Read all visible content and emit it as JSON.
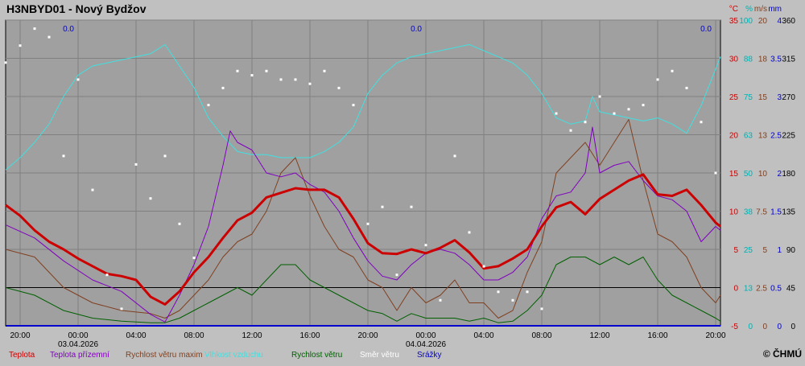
{
  "chart_data": {
    "type": "line",
    "title": "H3NBYD01 - Nový Bydžov",
    "copyright": "© ČHMÚ",
    "x_range": [
      "2026-04-02 19:00",
      "2026-04-04 20:20"
    ],
    "x_ticks": [
      {
        "t": "2026-04-02 20:00",
        "label": "20:00",
        "date": ""
      },
      {
        "t": "2026-04-03 00:00",
        "label": "00:00",
        "date": "03.04.2026"
      },
      {
        "t": "2026-04-03 04:00",
        "label": "04:00",
        "date": ""
      },
      {
        "t": "2026-04-03 08:00",
        "label": "08:00",
        "date": ""
      },
      {
        "t": "2026-04-03 12:00",
        "label": "12:00",
        "date": ""
      },
      {
        "t": "2026-04-03 16:00",
        "label": "16:00",
        "date": ""
      },
      {
        "t": "2026-04-03 20:00",
        "label": "20:00",
        "date": ""
      },
      {
        "t": "2026-04-04 00:00",
        "label": "00:00",
        "date": "04.04.2026"
      },
      {
        "t": "2026-04-04 04:00",
        "label": "04:00",
        "date": ""
      },
      {
        "t": "2026-04-04 08:00",
        "label": "08:00",
        "date": ""
      },
      {
        "t": "2026-04-04 12:00",
        "label": "12:00",
        "date": ""
      },
      {
        "t": "2026-04-04 16:00",
        "label": "16:00",
        "date": ""
      },
      {
        "t": "2026-04-04 20:00",
        "label": "20:00",
        "date": ""
      }
    ],
    "precip_labels": [
      {
        "t": "2026-04-03 00:00",
        "text": "0.0"
      },
      {
        "t": "2026-04-04 00:00",
        "text": "0.0"
      },
      {
        "t": "2026-04-04 20:00",
        "text": "0.0"
      }
    ],
    "axes": [
      {
        "unit": "°C",
        "color": "#cc0000",
        "ticks": [
          "-5",
          "0",
          "5",
          "10",
          "15",
          "20",
          "25",
          "30",
          "35"
        ]
      },
      {
        "unit": "%",
        "color": "#00b0b0",
        "ticks": [
          "0",
          "13",
          "25",
          "38",
          "50",
          "63",
          "75",
          "88",
          "100"
        ]
      },
      {
        "unit": "m/s",
        "color": "#804020",
        "ticks": [
          "0",
          "2.5",
          "5",
          "7.5",
          "10",
          "13",
          "15",
          "18",
          "20"
        ]
      },
      {
        "unit": "mm",
        "color": "#0000cc",
        "ticks": [
          "0",
          "0.5",
          "1",
          "1.5",
          "2",
          "2.5",
          "3",
          "3.5",
          "4"
        ]
      },
      {
        "unit": "",
        "color": "#000000",
        "ticks": [
          "0",
          "45",
          "90",
          "135",
          "180",
          "225",
          "270",
          "315",
          "360"
        ]
      }
    ],
    "ylim": [
      -5,
      35
    ],
    "series": [
      {
        "name": "Teplota",
        "axis": "°C",
        "color": "#cc0000",
        "width": 3,
        "x": [
          "2026-04-02 19:00",
          "2026-04-02 20:00",
          "2026-04-02 21:00",
          "2026-04-02 22:00",
          "2026-04-02 23:00",
          "2026-04-03 00:00",
          "2026-04-03 01:00",
          "2026-04-03 02:00",
          "2026-04-03 03:00",
          "2026-04-03 04:00",
          "2026-04-03 05:00",
          "2026-04-03 06:00",
          "2026-04-03 07:00",
          "2026-04-03 08:00",
          "2026-04-03 09:00",
          "2026-04-03 10:00",
          "2026-04-03 11:00",
          "2026-04-03 12:00",
          "2026-04-03 13:00",
          "2026-04-03 14:00",
          "2026-04-03 15:00",
          "2026-04-03 16:00",
          "2026-04-03 17:00",
          "2026-04-03 18:00",
          "2026-04-03 19:00",
          "2026-04-03 20:00",
          "2026-04-03 21:00",
          "2026-04-03 22:00",
          "2026-04-03 23:00",
          "2026-04-04 00:00",
          "2026-04-04 01:00",
          "2026-04-04 02:00",
          "2026-04-04 03:00",
          "2026-04-04 04:00",
          "2026-04-04 05:00",
          "2026-04-04 06:00",
          "2026-04-04 07:00",
          "2026-04-04 08:00",
          "2026-04-04 09:00",
          "2026-04-04 10:00",
          "2026-04-04 11:00",
          "2026-04-04 12:00",
          "2026-04-04 13:00",
          "2026-04-04 14:00",
          "2026-04-04 15:00",
          "2026-04-04 16:00",
          "2026-04-04 17:00",
          "2026-04-04 18:00",
          "2026-04-04 19:00",
          "2026-04-04 20:00",
          "2026-04-04 20:20"
        ],
        "values": [
          10.8,
          9.4,
          7.5,
          6.0,
          5.0,
          3.8,
          2.8,
          1.8,
          1.5,
          1.0,
          -1.2,
          -2.2,
          -0.5,
          2.0,
          4.0,
          6.5,
          8.8,
          9.8,
          11.8,
          12.4,
          13.0,
          12.8,
          12.8,
          11.8,
          9.0,
          5.8,
          4.5,
          4.4,
          5.0,
          4.5,
          5.2,
          6.2,
          4.6,
          2.5,
          2.8,
          3.8,
          5.0,
          8.0,
          10.5,
          11.2,
          9.6,
          11.6,
          12.8,
          14.0,
          14.8,
          12.2,
          12.0,
          12.8,
          10.8,
          8.5,
          8.0
        ]
      },
      {
        "name": "Teplota přízemní",
        "axis": "°C",
        "color": "#8000c0",
        "width": 1,
        "x": [
          "2026-04-02 19:00",
          "2026-04-02 21:00",
          "2026-04-02 23:00",
          "2026-04-03 01:00",
          "2026-04-03 03:00",
          "2026-04-03 05:00",
          "2026-04-03 06:00",
          "2026-04-03 07:00",
          "2026-04-03 08:00",
          "2026-04-03 09:00",
          "2026-04-03 10:00",
          "2026-04-03 10:30",
          "2026-04-03 11:00",
          "2026-04-03 12:00",
          "2026-04-03 13:00",
          "2026-04-03 14:00",
          "2026-04-03 15:00",
          "2026-04-03 16:00",
          "2026-04-03 17:00",
          "2026-04-03 18:00",
          "2026-04-03 19:00",
          "2026-04-03 20:00",
          "2026-04-03 21:00",
          "2026-04-03 22:00",
          "2026-04-03 23:00",
          "2026-04-04 00:00",
          "2026-04-04 01:00",
          "2026-04-04 02:00",
          "2026-04-04 03:00",
          "2026-04-04 04:00",
          "2026-04-04 05:00",
          "2026-04-04 06:00",
          "2026-04-04 07:00",
          "2026-04-04 08:00",
          "2026-04-04 09:00",
          "2026-04-04 10:00",
          "2026-04-04 11:00",
          "2026-04-04 11:30",
          "2026-04-04 12:00",
          "2026-04-04 13:00",
          "2026-04-04 14:00",
          "2026-04-04 15:00",
          "2026-04-04 16:00",
          "2026-04-04 17:00",
          "2026-04-04 18:00",
          "2026-04-04 19:00",
          "2026-04-04 20:00",
          "2026-04-04 20:20"
        ],
        "values": [
          8.2,
          6.5,
          3.5,
          1.0,
          -0.5,
          -3.5,
          -4.5,
          -1.0,
          3.0,
          8.0,
          16.0,
          20.5,
          19.0,
          18.0,
          15.0,
          14.5,
          15.0,
          13.5,
          12.5,
          10.0,
          6.5,
          3.5,
          1.5,
          1.0,
          3.0,
          4.5,
          5.0,
          4.5,
          3.0,
          1.0,
          1.0,
          2.0,
          4.0,
          9.0,
          12.0,
          12.5,
          15.0,
          21.0,
          15.0,
          16.0,
          16.5,
          14.0,
          12.0,
          11.5,
          10.0,
          6.0,
          8.0,
          7.5
        ]
      },
      {
        "name": "Rychlost větru maxim",
        "axis": "m/s",
        "color": "#804020",
        "width": 1,
        "x": [
          "2026-04-02 19:00",
          "2026-04-02 21:00",
          "2026-04-02 23:00",
          "2026-04-03 01:00",
          "2026-04-03 03:00",
          "2026-04-03 05:00",
          "2026-04-03 06:00",
          "2026-04-03 07:00",
          "2026-04-03 08:00",
          "2026-04-03 09:00",
          "2026-04-03 10:00",
          "2026-04-03 11:00",
          "2026-04-03 12:00",
          "2026-04-03 13:00",
          "2026-04-03 14:00",
          "2026-04-03 15:00",
          "2026-04-03 16:00",
          "2026-04-03 17:00",
          "2026-04-03 18:00",
          "2026-04-03 19:00",
          "2026-04-03 20:00",
          "2026-04-03 21:00",
          "2026-04-03 22:00",
          "2026-04-03 23:00",
          "2026-04-04 00:00",
          "2026-04-04 01:00",
          "2026-04-04 02:00",
          "2026-04-04 03:00",
          "2026-04-04 04:00",
          "2026-04-04 05:00",
          "2026-04-04 06:00",
          "2026-04-04 07:00",
          "2026-04-04 08:00",
          "2026-04-04 09:00",
          "2026-04-04 10:00",
          "2026-04-04 11:00",
          "2026-04-04 12:00",
          "2026-04-04 13:00",
          "2026-04-04 14:00",
          "2026-04-04 15:00",
          "2026-04-04 16:00",
          "2026-04-04 17:00",
          "2026-04-04 18:00",
          "2026-04-04 19:00",
          "2026-04-04 20:00",
          "2026-04-04 20:20"
        ],
        "values": [
          5.0,
          4.5,
          2.5,
          1.5,
          1.0,
          0.8,
          0.5,
          1.0,
          2.0,
          3.0,
          4.5,
          5.5,
          6.0,
          7.5,
          10.0,
          11.0,
          8.5,
          6.5,
          5.0,
          4.5,
          3.0,
          2.5,
          1.0,
          2.5,
          1.5,
          2.0,
          3.0,
          1.5,
          1.5,
          0.5,
          1.0,
          3.5,
          5.5,
          10.0,
          11.0,
          12.0,
          10.5,
          12.0,
          13.5,
          9.5,
          6.0,
          5.5,
          4.5,
          2.5,
          1.5,
          2.0
        ]
      },
      {
        "name": "Vlhkost vzduchu",
        "axis": "%",
        "color": "#40e0e0",
        "width": 1,
        "x": [
          "2026-04-02 19:00",
          "2026-04-02 20:00",
          "2026-04-02 21:00",
          "2026-04-02 22:00",
          "2026-04-02 23:00",
          "2026-04-03 00:00",
          "2026-04-03 01:00",
          "2026-04-03 02:00",
          "2026-04-03 03:00",
          "2026-04-03 04:00",
          "2026-04-03 05:00",
          "2026-04-03 06:00",
          "2026-04-03 07:00",
          "2026-04-03 08:00",
          "2026-04-03 09:00",
          "2026-04-03 10:00",
          "2026-04-03 11:00",
          "2026-04-03 12:00",
          "2026-04-03 13:00",
          "2026-04-03 14:00",
          "2026-04-03 15:00",
          "2026-04-03 16:00",
          "2026-04-03 17:00",
          "2026-04-03 18:00",
          "2026-04-03 19:00",
          "2026-04-03 20:00",
          "2026-04-03 21:00",
          "2026-04-03 22:00",
          "2026-04-03 23:00",
          "2026-04-04 00:00",
          "2026-04-04 01:00",
          "2026-04-04 02:00",
          "2026-04-04 03:00",
          "2026-04-04 04:00",
          "2026-04-04 05:00",
          "2026-04-04 06:00",
          "2026-04-04 07:00",
          "2026-04-04 08:00",
          "2026-04-04 09:00",
          "2026-04-04 10:00",
          "2026-04-04 11:00",
          "2026-04-04 11:30",
          "2026-04-04 12:00",
          "2026-04-04 13:00",
          "2026-04-04 14:00",
          "2026-04-04 15:00",
          "2026-04-04 16:00",
          "2026-04-04 17:00",
          "2026-04-04 18:00",
          "2026-04-04 19:00",
          "2026-04-04 20:00",
          "2026-04-04 20:20"
        ],
        "values": [
          51,
          55,
          60,
          66,
          75,
          82,
          85,
          86,
          87,
          88,
          89,
          92,
          85,
          78,
          68,
          62,
          57,
          56,
          56,
          55,
          55,
          55,
          57,
          60,
          65,
          76,
          82,
          86,
          88,
          89,
          90,
          91,
          92,
          90,
          88,
          86,
          82,
          76,
          68,
          66,
          67,
          75,
          70,
          69,
          68,
          67,
          68,
          66,
          63,
          72,
          84,
          88
        ]
      },
      {
        "name": "Rychlost větru",
        "axis": "m/s",
        "color": "#006000",
        "width": 1,
        "x": [
          "2026-04-02 19:00",
          "2026-04-02 21:00",
          "2026-04-02 23:00",
          "2026-04-03 01:00",
          "2026-04-03 03:00",
          "2026-04-03 05:00",
          "2026-04-03 06:00",
          "2026-04-03 07:00",
          "2026-04-03 08:00",
          "2026-04-03 09:00",
          "2026-04-03 10:00",
          "2026-04-03 11:00",
          "2026-04-03 12:00",
          "2026-04-03 13:00",
          "2026-04-03 14:00",
          "2026-04-03 15:00",
          "2026-04-03 16:00",
          "2026-04-03 17:00",
          "2026-04-03 18:00",
          "2026-04-03 19:00",
          "2026-04-03 20:00",
          "2026-04-03 21:00",
          "2026-04-03 22:00",
          "2026-04-03 23:00",
          "2026-04-04 00:00",
          "2026-04-04 01:00",
          "2026-04-04 02:00",
          "2026-04-04 03:00",
          "2026-04-04 04:00",
          "2026-04-04 05:00",
          "2026-04-04 06:00",
          "2026-04-04 07:00",
          "2026-04-04 08:00",
          "2026-04-04 09:00",
          "2026-04-04 10:00",
          "2026-04-04 11:00",
          "2026-04-04 12:00",
          "2026-04-04 13:00",
          "2026-04-04 14:00",
          "2026-04-04 15:00",
          "2026-04-04 16:00",
          "2026-04-04 17:00",
          "2026-04-04 18:00",
          "2026-04-04 19:00",
          "2026-04-04 20:00",
          "2026-04-04 20:20"
        ],
        "values": [
          2.5,
          2.0,
          1.0,
          0.5,
          0.3,
          0.2,
          0.2,
          0.5,
          1.0,
          1.5,
          2.0,
          2.5,
          2.0,
          3.0,
          4.0,
          4.0,
          3.0,
          2.5,
          2.0,
          1.5,
          1.0,
          0.8,
          0.3,
          0.8,
          0.5,
          0.5,
          0.5,
          0.3,
          0.5,
          0.2,
          0.3,
          1.0,
          2.0,
          4.0,
          4.5,
          4.5,
          4.0,
          4.5,
          4.0,
          4.5,
          3.0,
          2.0,
          1.5,
          1.0,
          0.5,
          0.3
        ]
      },
      {
        "name": "Srážky",
        "axis": "mm",
        "color": "#0000cc",
        "width": 2,
        "x": [
          "2026-04-02 19:00",
          "2026-04-04 20:20"
        ],
        "values": [
          0,
          0
        ]
      }
    ],
    "wind_direction": {
      "name": "Směr větru",
      "axis": "",
      "color": "#ffffff",
      "x": [
        "2026-04-02 19:00",
        "2026-04-02 20:00",
        "2026-04-02 21:00",
        "2026-04-02 22:00",
        "2026-04-02 23:00",
        "2026-04-03 00:00",
        "2026-04-03 01:00",
        "2026-04-03 02:00",
        "2026-04-03 03:00",
        "2026-04-03 04:00",
        "2026-04-03 05:00",
        "2026-04-03 06:00",
        "2026-04-03 07:00",
        "2026-04-03 08:00",
        "2026-04-03 09:00",
        "2026-04-03 10:00",
        "2026-04-03 11:00",
        "2026-04-03 12:00",
        "2026-04-03 13:00",
        "2026-04-03 14:00",
        "2026-04-03 15:00",
        "2026-04-03 16:00",
        "2026-04-03 17:00",
        "2026-04-03 18:00",
        "2026-04-03 19:00",
        "2026-04-03 20:00",
        "2026-04-03 21:00",
        "2026-04-03 22:00",
        "2026-04-03 23:00",
        "2026-04-04 00:00",
        "2026-04-04 01:00",
        "2026-04-04 02:00",
        "2026-04-04 03:00",
        "2026-04-04 04:00",
        "2026-04-04 05:00",
        "2026-04-04 06:00",
        "2026-04-04 07:00",
        "2026-04-04 08:00",
        "2026-04-04 09:00",
        "2026-04-04 10:00",
        "2026-04-04 11:00",
        "2026-04-04 12:00",
        "2026-04-04 13:00",
        "2026-04-04 14:00",
        "2026-04-04 15:00",
        "2026-04-04 16:00",
        "2026-04-04 17:00",
        "2026-04-04 18:00",
        "2026-04-04 19:00",
        "2026-04-04 20:00"
      ],
      "values": [
        310,
        330,
        350,
        340,
        200,
        290,
        160,
        60,
        20,
        190,
        150,
        200,
        120,
        80,
        260,
        280,
        300,
        295,
        300,
        290,
        290,
        285,
        300,
        280,
        260,
        120,
        140,
        60,
        140,
        95,
        30,
        200,
        110,
        70,
        40,
        30,
        40,
        20,
        250,
        230,
        240,
        270,
        250,
        255,
        260,
        290,
        300,
        280,
        240,
        180
      ]
    }
  },
  "legend": [
    {
      "label": "Teplota",
      "color": "#cc0000"
    },
    {
      "label": "Teplota přízemní",
      "color": "#8000c0"
    },
    {
      "label": "Rychlost větru maxim",
      "color": "#804020"
    },
    {
      "label": "Vlhkost vzduchu",
      "color": "#40e0e0"
    },
    {
      "label": "Rychlost větru",
      "color": "#006000"
    },
    {
      "label": "Směr větru",
      "color": "#ffffff"
    },
    {
      "label": "Srážky",
      "color": "#0000cc"
    }
  ]
}
